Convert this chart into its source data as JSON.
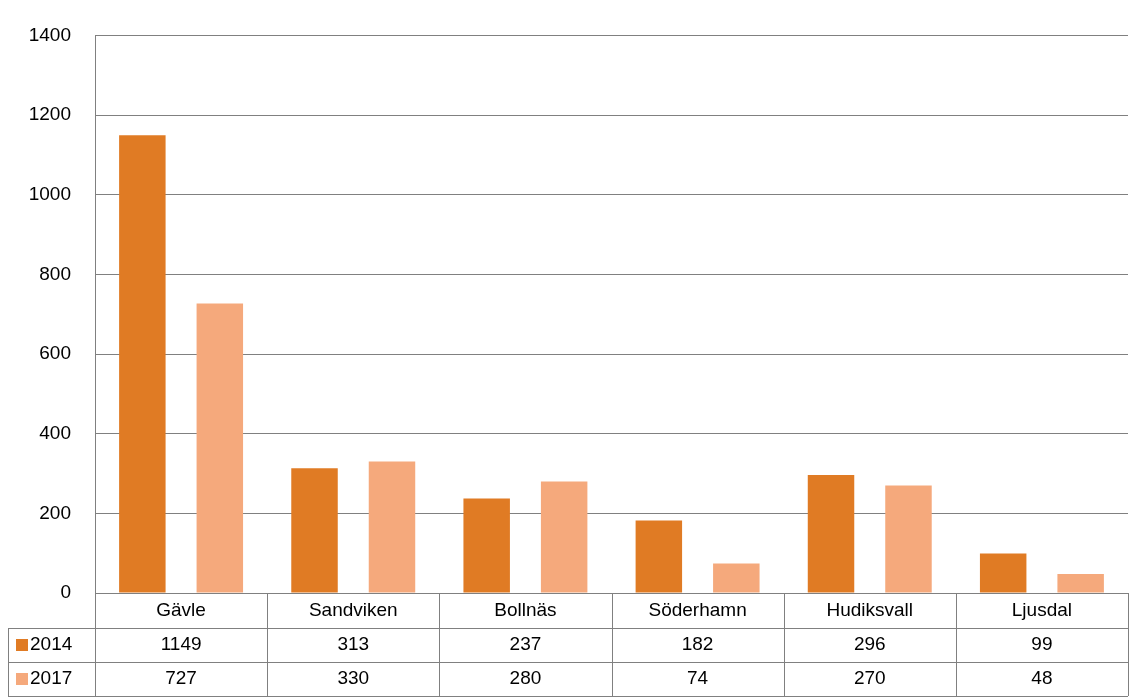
{
  "chart_data": {
    "type": "bar",
    "categories": [
      "Gävle",
      "Sandviken",
      "Bollnäs",
      "Söderhamn",
      "Hudiksvall",
      "Ljusdal"
    ],
    "series": [
      {
        "name": "2014",
        "color": "#e07b24",
        "values": [
          1149,
          313,
          237,
          182,
          296,
          99
        ]
      },
      {
        "name": "2017",
        "color": "#f5a97c",
        "values": [
          727,
          330,
          280,
          74,
          270,
          48
        ]
      }
    ],
    "ylim": [
      0,
      1400
    ],
    "yticks": [
      0,
      200,
      400,
      600,
      800,
      1000,
      1200,
      1400
    ],
    "grid": "y",
    "legend": "bottom",
    "data_labels": true
  }
}
